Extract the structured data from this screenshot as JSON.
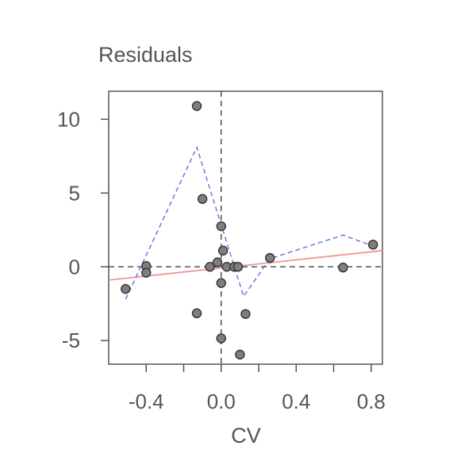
{
  "chart_data": {
    "type": "scatter",
    "title": "Residuals",
    "xlabel": "CV",
    "ylabel": "",
    "xlim": [
      -0.6,
      0.86
    ],
    "ylim": [
      -6.6,
      11.9
    ],
    "x_ticks": [
      -0.4,
      0.0,
      0.4,
      0.8
    ],
    "x_tick_labels": [
      "-0.4",
      "0.0",
      "0.4",
      "0.8"
    ],
    "y_ticks": [
      -5,
      0,
      5,
      10
    ],
    "y_tick_labels": [
      "-5",
      "0",
      "5",
      "10"
    ],
    "grid": false,
    "reference_lines": {
      "vertical_x": 0,
      "horizontal_y": 0
    },
    "points": [
      {
        "x": -0.51,
        "y": -1.5
      },
      {
        "x": -0.4,
        "y": 0.05
      },
      {
        "x": -0.4,
        "y": -0.4
      },
      {
        "x": -0.13,
        "y": 10.9
      },
      {
        "x": -0.13,
        "y": -3.15
      },
      {
        "x": -0.1,
        "y": 4.6
      },
      {
        "x": -0.06,
        "y": 0.0
      },
      {
        "x": -0.02,
        "y": 0.3
      },
      {
        "x": 0.0,
        "y": 2.75
      },
      {
        "x": 0.01,
        "y": 1.1
      },
      {
        "x": 0.0,
        "y": -1.1
      },
      {
        "x": 0.0,
        "y": -4.85
      },
      {
        "x": 0.03,
        "y": 0.0
      },
      {
        "x": 0.07,
        "y": 0.0
      },
      {
        "x": 0.09,
        "y": 0.0
      },
      {
        "x": 0.1,
        "y": -5.95
      },
      {
        "x": 0.13,
        "y": -3.2
      },
      {
        "x": 0.26,
        "y": 0.6
      },
      {
        "x": 0.65,
        "y": -0.05
      },
      {
        "x": 0.81,
        "y": 1.5
      }
    ],
    "linear_fit": {
      "x": [
        -0.6,
        0.86
      ],
      "y": [
        -0.9,
        1.1
      ]
    },
    "smooth_curve": {
      "x": [
        -0.51,
        -0.13,
        0.12,
        0.26,
        0.65,
        0.81
      ],
      "y": [
        -2.2,
        8.1,
        -2.0,
        0.55,
        2.15,
        1.4
      ]
    },
    "colors": {
      "point_fill": "#7f7f7f",
      "point_stroke": "#333333",
      "fit_line": "#f29696",
      "smooth_line": "#6b6be0",
      "axis": "#555555",
      "reference": "#333333"
    }
  }
}
